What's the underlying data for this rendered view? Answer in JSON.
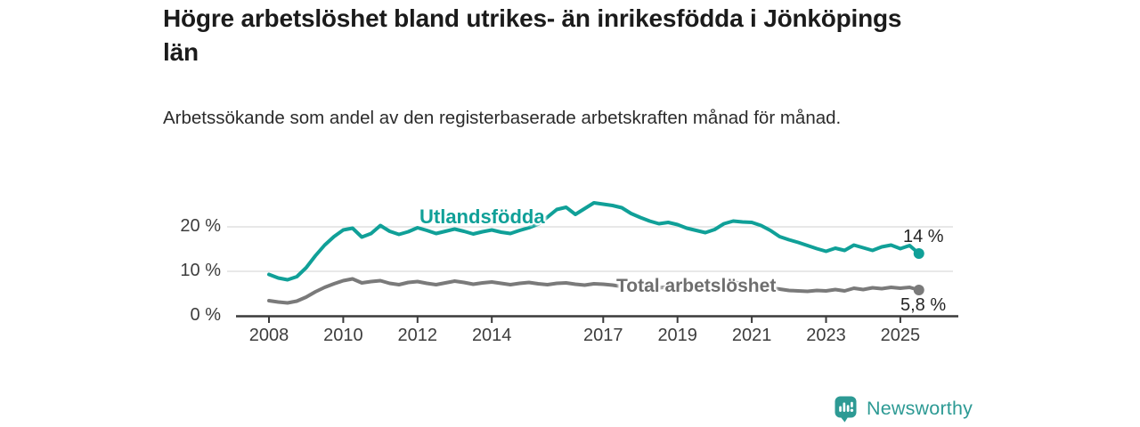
{
  "title": "Högre arbetslöshet bland utrikes- än inrikesfödda i Jönköpings län",
  "subtitle": "Arbetssökande som andel av den registerbaserade arbetskraften månad för månad.",
  "branding": {
    "logo_text": "Newsworthy",
    "logo_color": "#2d9a94",
    "logo_icon": "bar-chart-speech-bubble-icon"
  },
  "chart_data": {
    "type": "line",
    "title": "Högre arbetslöshet bland utrikes- än inrikesfödda i Jönköpings län",
    "xlabel": "",
    "ylabel": "Arbetssökande som andel av den registerbaserade arbetskraften",
    "x_unit": "decimal year (monthly series, quarterly sampled)",
    "grid": "horizontal",
    "grid_color": "#dbdbdb",
    "axis_color": "#3a3a3a",
    "tick_label_color": "#3d3d3d",
    "xlim": [
      2007.6,
      2026.6
    ],
    "ylim": [
      0,
      27
    ],
    "y_ticks": [
      {
        "value": 0,
        "label": "0 %"
      },
      {
        "value": 10,
        "label": "10 %"
      },
      {
        "value": 20,
        "label": "20 %"
      }
    ],
    "x_ticks": [
      {
        "year": 2008,
        "label": "2008"
      },
      {
        "year": 2010,
        "label": "2010"
      },
      {
        "year": 2012,
        "label": "2012"
      },
      {
        "year": 2014,
        "label": "2014"
      },
      {
        "year": 2017,
        "label": "2017"
      },
      {
        "year": 2019,
        "label": "2019"
      },
      {
        "year": 2021,
        "label": "2021"
      },
      {
        "year": 2023,
        "label": "2023"
      },
      {
        "year": 2025,
        "label": "2025"
      }
    ],
    "x": [
      2008.0,
      2008.25,
      2008.5,
      2008.75,
      2009.0,
      2009.25,
      2009.5,
      2009.75,
      2010.0,
      2010.25,
      2010.5,
      2010.75,
      2011.0,
      2011.25,
      2011.5,
      2011.75,
      2012.0,
      2012.25,
      2012.5,
      2012.75,
      2013.0,
      2013.25,
      2013.5,
      2013.75,
      2014.0,
      2014.25,
      2014.5,
      2014.75,
      2015.0,
      2015.25,
      2015.5,
      2015.75,
      2016.0,
      2016.25,
      2016.5,
      2016.75,
      2017.0,
      2017.25,
      2017.5,
      2017.75,
      2018.0,
      2018.25,
      2018.5,
      2018.75,
      2019.0,
      2019.25,
      2019.5,
      2019.75,
      2020.0,
      2020.25,
      2020.5,
      2020.75,
      2021.0,
      2021.25,
      2021.5,
      2021.75,
      2022.0,
      2022.25,
      2022.5,
      2022.75,
      2023.0,
      2023.25,
      2023.5,
      2023.75,
      2024.0,
      2024.25,
      2024.5,
      2024.75,
      2025.0,
      2025.25,
      2025.5
    ],
    "series": [
      {
        "name": "Utlandsfödda",
        "color": "#10a098",
        "end_label": "14 %",
        "end_value": 14.0,
        "values": [
          9.3,
          8.5,
          8.1,
          8.8,
          10.8,
          13.5,
          15.9,
          17.8,
          19.3,
          19.7,
          17.7,
          18.5,
          20.3,
          19.0,
          18.3,
          18.9,
          19.8,
          19.2,
          18.5,
          19.0,
          19.5,
          19.0,
          18.4,
          18.9,
          19.3,
          18.8,
          18.5,
          19.2,
          19.8,
          20.6,
          22.2,
          23.9,
          24.4,
          22.8,
          24.1,
          25.4,
          25.1,
          24.8,
          24.3,
          23.0,
          22.1,
          21.3,
          20.7,
          21.0,
          20.5,
          19.7,
          19.2,
          18.7,
          19.4,
          20.7,
          21.3,
          21.1,
          21.0,
          20.3,
          19.2,
          17.8,
          17.1,
          16.5,
          15.8,
          15.1,
          14.5,
          15.2,
          14.7,
          15.9,
          15.3,
          14.7,
          15.5,
          15.9,
          15.1,
          15.8,
          14.0
        ]
      },
      {
        "name": "Total arbetslöshet",
        "color": "#7a7a7a",
        "end_label": "5,8 %",
        "end_value": 5.8,
        "values": [
          3.4,
          3.1,
          2.9,
          3.3,
          4.2,
          5.4,
          6.4,
          7.2,
          7.9,
          8.3,
          7.4,
          7.7,
          7.9,
          7.3,
          7.0,
          7.5,
          7.7,
          7.3,
          7.0,
          7.4,
          7.8,
          7.5,
          7.1,
          7.4,
          7.6,
          7.3,
          7.0,
          7.3,
          7.5,
          7.2,
          7.0,
          7.3,
          7.4,
          7.1,
          6.9,
          7.2,
          7.1,
          6.9,
          6.6,
          6.8,
          6.7,
          6.5,
          6.3,
          6.5,
          6.4,
          6.3,
          6.4,
          6.6,
          7.1,
          7.7,
          7.5,
          7.3,
          7.1,
          6.7,
          6.3,
          6.0,
          5.7,
          5.6,
          5.5,
          5.7,
          5.6,
          5.9,
          5.6,
          6.2,
          5.9,
          6.3,
          6.1,
          6.4,
          6.2,
          6.4,
          5.8
        ]
      }
    ],
    "legend_position": "inline-labels-on-lines"
  }
}
